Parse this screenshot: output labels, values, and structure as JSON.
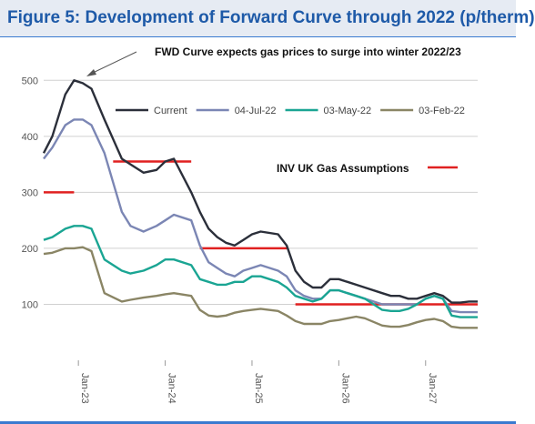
{
  "header": {
    "title": "Figure 5: Development of Forward Curve through 2022 (p/therm)"
  },
  "chart_data": {
    "type": "line",
    "annotation": "FWD Curve expects gas prices to surge into winter 2022/23",
    "assumption_label": "INV UK Gas Assumptions",
    "x_tick_labels": [
      "Jan-23",
      "Jan-24",
      "Jan-25",
      "Jan-26",
      "Jan-27"
    ],
    "ylim": [
      0,
      520
    ],
    "y_ticks": [
      100,
      200,
      300,
      400,
      500
    ],
    "grid": true,
    "legend_position": "top-right",
    "colors": {
      "title_bg": "#e6ebf3",
      "title_text": "#1e5aa8",
      "assumption": "#e02020"
    },
    "series": [
      {
        "name": "Current",
        "color": "#2b2f3a",
        "x": [
          -0.4,
          -0.3,
          -0.15,
          -0.05,
          0.05,
          0.15,
          0.3,
          0.5,
          0.6,
          0.75,
          0.9,
          1.0,
          1.1,
          1.3,
          1.4,
          1.5,
          1.6,
          1.7,
          1.8,
          1.9,
          2.0,
          2.1,
          2.3,
          2.4,
          2.5,
          2.6,
          2.7,
          2.8,
          2.9,
          3.0,
          3.1,
          3.2,
          3.3,
          3.5,
          3.6,
          3.7,
          3.8,
          3.9,
          4.0,
          4.1,
          4.2,
          4.3,
          4.4,
          4.5,
          4.6
        ],
        "values": [
          370,
          400,
          475,
          500,
          495,
          485,
          430,
          360,
          350,
          335,
          340,
          355,
          360,
          300,
          265,
          235,
          220,
          210,
          205,
          215,
          225,
          230,
          225,
          205,
          160,
          140,
          130,
          130,
          145,
          145,
          140,
          135,
          130,
          120,
          115,
          115,
          110,
          110,
          115,
          120,
          115,
          103,
          103,
          105,
          105
        ]
      },
      {
        "name": "04-Jul-22",
        "color": "#7b86b4",
        "x": [
          -0.4,
          -0.3,
          -0.15,
          -0.05,
          0.05,
          0.15,
          0.3,
          0.5,
          0.6,
          0.75,
          0.9,
          1.0,
          1.1,
          1.3,
          1.4,
          1.5,
          1.6,
          1.7,
          1.8,
          1.9,
          2.0,
          2.1,
          2.3,
          2.4,
          2.5,
          2.6,
          2.7,
          2.8,
          2.9,
          3.0,
          3.1,
          3.2,
          3.3,
          3.5,
          3.6,
          3.7,
          3.8,
          3.9,
          4.0,
          4.1,
          4.2,
          4.3,
          4.4,
          4.5,
          4.6
        ],
        "values": [
          360,
          380,
          420,
          430,
          430,
          420,
          370,
          265,
          240,
          230,
          240,
          250,
          260,
          250,
          205,
          175,
          165,
          155,
          150,
          160,
          165,
          170,
          160,
          150,
          125,
          115,
          110,
          110,
          125,
          125,
          120,
          115,
          110,
          100,
          100,
          100,
          100,
          100,
          110,
          115,
          110,
          88,
          86,
          86,
          86
        ]
      },
      {
        "name": "03-May-22",
        "color": "#1aa593",
        "x": [
          -0.4,
          -0.3,
          -0.15,
          -0.05,
          0.05,
          0.15,
          0.3,
          0.5,
          0.6,
          0.75,
          0.9,
          1.0,
          1.1,
          1.3,
          1.4,
          1.5,
          1.6,
          1.7,
          1.8,
          1.9,
          2.0,
          2.1,
          2.3,
          2.4,
          2.5,
          2.6,
          2.7,
          2.8,
          2.9,
          3.0,
          3.1,
          3.2,
          3.3,
          3.5,
          3.6,
          3.7,
          3.8,
          3.9,
          4.0,
          4.1,
          4.2,
          4.3,
          4.4,
          4.5,
          4.6
        ],
        "values": [
          215,
          220,
          235,
          240,
          240,
          235,
          180,
          160,
          155,
          160,
          170,
          180,
          180,
          170,
          145,
          140,
          135,
          135,
          140,
          140,
          150,
          150,
          140,
          130,
          115,
          110,
          105,
          110,
          125,
          125,
          120,
          115,
          110,
          90,
          88,
          88,
          92,
          100,
          110,
          115,
          110,
          80,
          77,
          77,
          77
        ]
      },
      {
        "name": "03-Feb-22",
        "color": "#8a8565",
        "x": [
          -0.4,
          -0.3,
          -0.15,
          -0.05,
          0.05,
          0.15,
          0.3,
          0.5,
          0.6,
          0.75,
          0.9,
          1.0,
          1.1,
          1.3,
          1.4,
          1.5,
          1.6,
          1.7,
          1.8,
          1.9,
          2.0,
          2.1,
          2.3,
          2.4,
          2.5,
          2.6,
          2.7,
          2.8,
          2.9,
          3.0,
          3.1,
          3.2,
          3.3,
          3.5,
          3.6,
          3.7,
          3.8,
          3.9,
          4.0,
          4.1,
          4.2,
          4.3,
          4.4,
          4.5,
          4.6
        ],
        "values": [
          190,
          192,
          200,
          200,
          202,
          195,
          120,
          105,
          108,
          112,
          115,
          118,
          120,
          115,
          90,
          80,
          78,
          80,
          85,
          88,
          90,
          92,
          88,
          80,
          70,
          65,
          65,
          65,
          70,
          72,
          75,
          78,
          75,
          62,
          60,
          60,
          63,
          68,
          72,
          74,
          70,
          60,
          58,
          58,
          58
        ]
      }
    ],
    "assumptions": [
      {
        "x_start": -0.4,
        "x_end": -0.05,
        "value": 300
      },
      {
        "x_start": 0.4,
        "x_end": 1.3,
        "value": 355
      },
      {
        "x_start": 1.4,
        "x_end": 2.4,
        "value": 200
      },
      {
        "x_start": 2.5,
        "x_end": 4.6,
        "value": 100
      }
    ]
  }
}
